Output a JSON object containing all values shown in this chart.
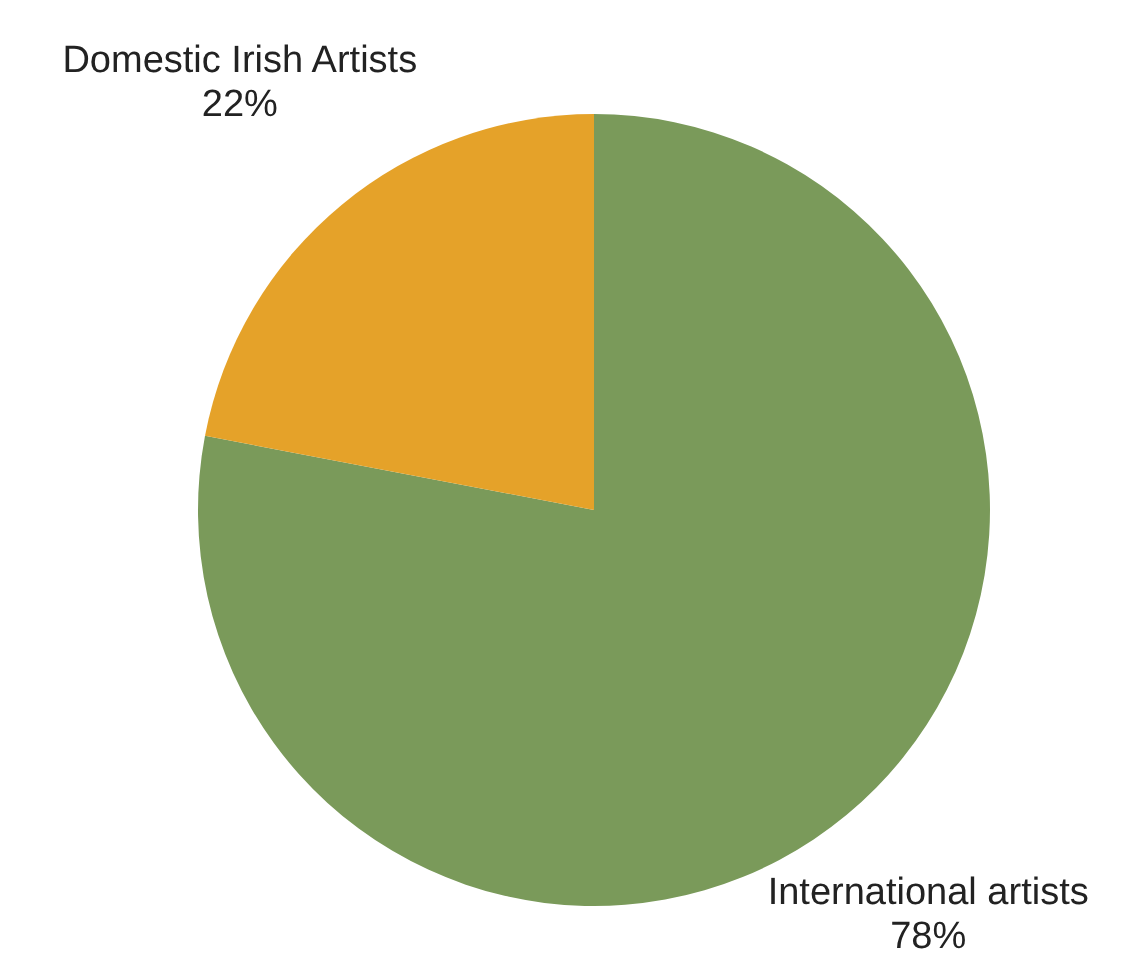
{
  "chart_data": {
    "type": "pie",
    "categories": [
      "International artists",
      "Domestic Irish Artists"
    ],
    "values": [
      78,
      22
    ],
    "colors": [
      "#7a9a5a",
      "#e5a229"
    ],
    "value_labels": [
      "78%",
      "22%"
    ],
    "legend": false
  }
}
